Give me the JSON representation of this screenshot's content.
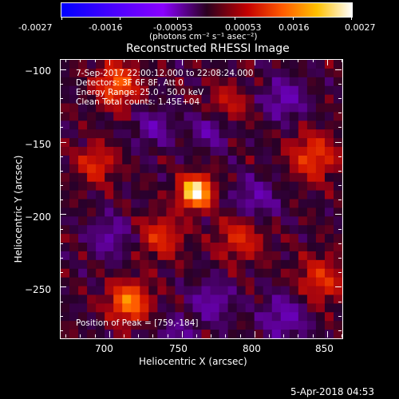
{
  "colorbar": {
    "tick_labels": [
      "-0.0027",
      "-0.0016",
      "-0.00053",
      "0.00053",
      "0.0016",
      "0.0027"
    ],
    "units": "(photons cm⁻² s⁻¹ asec⁻²)"
  },
  "chart_data": {
    "type": "heatmap",
    "title": "Reconstructed RHESSI Image",
    "xlabel": "Heliocentric X (arcsec)",
    "ylabel": "Heliocentric Y (arcsec)",
    "xlim": [
      666,
      860
    ],
    "ylim": [
      -285,
      -93
    ],
    "x_ticks": [
      700,
      750,
      800,
      850
    ],
    "y_ticks": [
      -100,
      -150,
      -200,
      -250
    ],
    "x_tick_labels": [
      "700",
      "750",
      "800",
      "850"
    ],
    "y_tick_labels": [
      "−100",
      "−150",
      "−200",
      "−250"
    ],
    "color_range": [
      -0.0027,
      0.0027
    ],
    "peak_position": [
      759,
      -184
    ],
    "annotations": [
      "7-Sep-2017 22:00:12.000 to 22:08:24.000",
      "Detectors: 3F 6F 8F, Att 0",
      "Energy Range: 25.0 - 50.0 keV",
      "Clean    Total counts: 1.45E+04"
    ],
    "peak_label": "Position of Peak = [759,-184]"
  },
  "footer": {
    "date": "5-Apr-2018 04:53"
  }
}
